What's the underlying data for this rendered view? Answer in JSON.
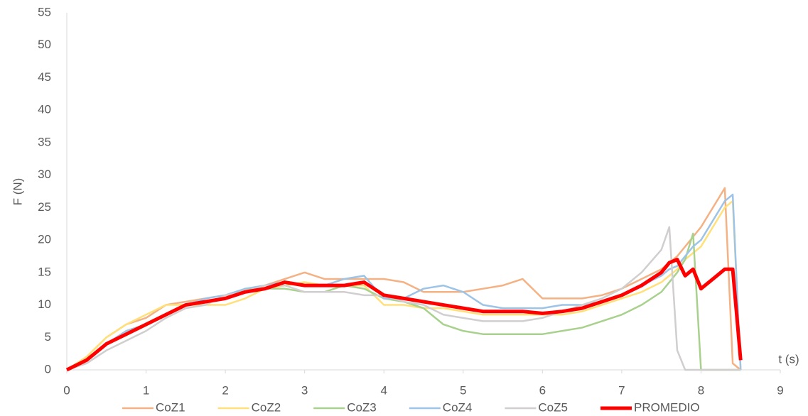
{
  "chart_data": {
    "type": "line",
    "y_label": "F (N)",
    "x_label": "t (s)",
    "xlim": [
      0,
      9
    ],
    "xticks": [
      0,
      1,
      2,
      3,
      4,
      5,
      6,
      7,
      8,
      9
    ],
    "ylim": [
      0,
      55
    ],
    "yticks": [
      0,
      5,
      10,
      15,
      20,
      25,
      30,
      35,
      40,
      45,
      50,
      55
    ],
    "grid": false,
    "legend": "bottom",
    "x": [
      0,
      0.25,
      0.5,
      0.75,
      1,
      1.25,
      1.5,
      1.75,
      2,
      2.25,
      2.5,
      2.75,
      3,
      3.25,
      3.5,
      3.75,
      4,
      4.25,
      4.5,
      4.75,
      5,
      5.25,
      5.5,
      5.75,
      6,
      6.25,
      6.5,
      6.75,
      7,
      7.25,
      7.5,
      7.6,
      7.7,
      7.8,
      7.9,
      8.0,
      8.1,
      8.2,
      8.3,
      8.4,
      8.5
    ],
    "series": [
      {
        "name": "CoZ1",
        "color": "#f4b183",
        "width": 2.5,
        "values": [
          0,
          2,
          5,
          7,
          8,
          10,
          10.5,
          11,
          11.5,
          12,
          13,
          14,
          15,
          14,
          14,
          14,
          14,
          13.5,
          12,
          12,
          12,
          12.5,
          13,
          14,
          11,
          11,
          11,
          11.5,
          12.5,
          14,
          15.5,
          16.5,
          17.5,
          19,
          20.5,
          22,
          24,
          26,
          28,
          1,
          0
        ]
      },
      {
        "name": "CoZ2",
        "color": "#ffe07a",
        "width": 2.5,
        "values": [
          0,
          2,
          5,
          7,
          8.5,
          10,
          10,
          10,
          10,
          11,
          12.5,
          13,
          13.5,
          13,
          13,
          13,
          10,
          10,
          9.5,
          9.5,
          9,
          8.5,
          8.5,
          8.5,
          8.5,
          8.5,
          9,
          10,
          11,
          12,
          13.5,
          14.5,
          15.5,
          17,
          18,
          19,
          21,
          23,
          25,
          26,
          0
        ]
      },
      {
        "name": "CoZ3",
        "color": "#a9d18e",
        "width": 2.5,
        "values": [
          0,
          1.5,
          4,
          6,
          7,
          8.5,
          10,
          10.5,
          11,
          12.5,
          12.5,
          12.5,
          12,
          12,
          13,
          12.5,
          11,
          10.5,
          9.5,
          7,
          6,
          5.5,
          5.5,
          5.5,
          5.5,
          6,
          6.5,
          7.5,
          8.5,
          10,
          12,
          13.5,
          15,
          17,
          21,
          0,
          0,
          0,
          0,
          0,
          0
        ]
      },
      {
        "name": "CoZ4",
        "color": "#9dc3e6",
        "width": 2.5,
        "values": [
          0,
          1.5,
          4,
          6,
          7,
          8.5,
          10,
          11,
          11.5,
          12.5,
          13,
          13.5,
          13,
          13,
          14,
          14.5,
          11,
          11,
          12.5,
          13,
          12,
          10,
          9.5,
          9.5,
          9.5,
          10,
          10,
          10.5,
          11.5,
          13,
          14.5,
          15.5,
          16,
          17.5,
          19,
          20,
          22,
          24,
          26,
          27,
          0
        ]
      },
      {
        "name": "CoZ5",
        "color": "#d0cece",
        "width": 2.5,
        "values": [
          0,
          1,
          3,
          4.5,
          6,
          8,
          9.5,
          10,
          11.5,
          12,
          13,
          13,
          12,
          12,
          12,
          11.5,
          11.5,
          10.5,
          10,
          8.5,
          8,
          7.5,
          7.5,
          7.5,
          8,
          9,
          10,
          11,
          12.5,
          15,
          18.5,
          22,
          3,
          0,
          0,
          0,
          0,
          0,
          0,
          0,
          0
        ]
      },
      {
        "name": "PROMEDIO",
        "color": "#ff0000",
        "width": 5,
        "values": [
          0,
          1.5,
          4,
          5.5,
          7,
          8.5,
          10,
          10.5,
          11,
          12,
          12.5,
          13.5,
          13,
          13,
          13,
          13.5,
          11.5,
          11,
          10.5,
          10,
          9.5,
          9,
          9,
          9,
          8.7,
          9,
          9.5,
          10.5,
          11.5,
          13,
          15,
          16.5,
          17,
          14.5,
          15.5,
          12.5,
          13.5,
          14.5,
          15.5,
          15.5,
          1.5
        ]
      }
    ]
  }
}
